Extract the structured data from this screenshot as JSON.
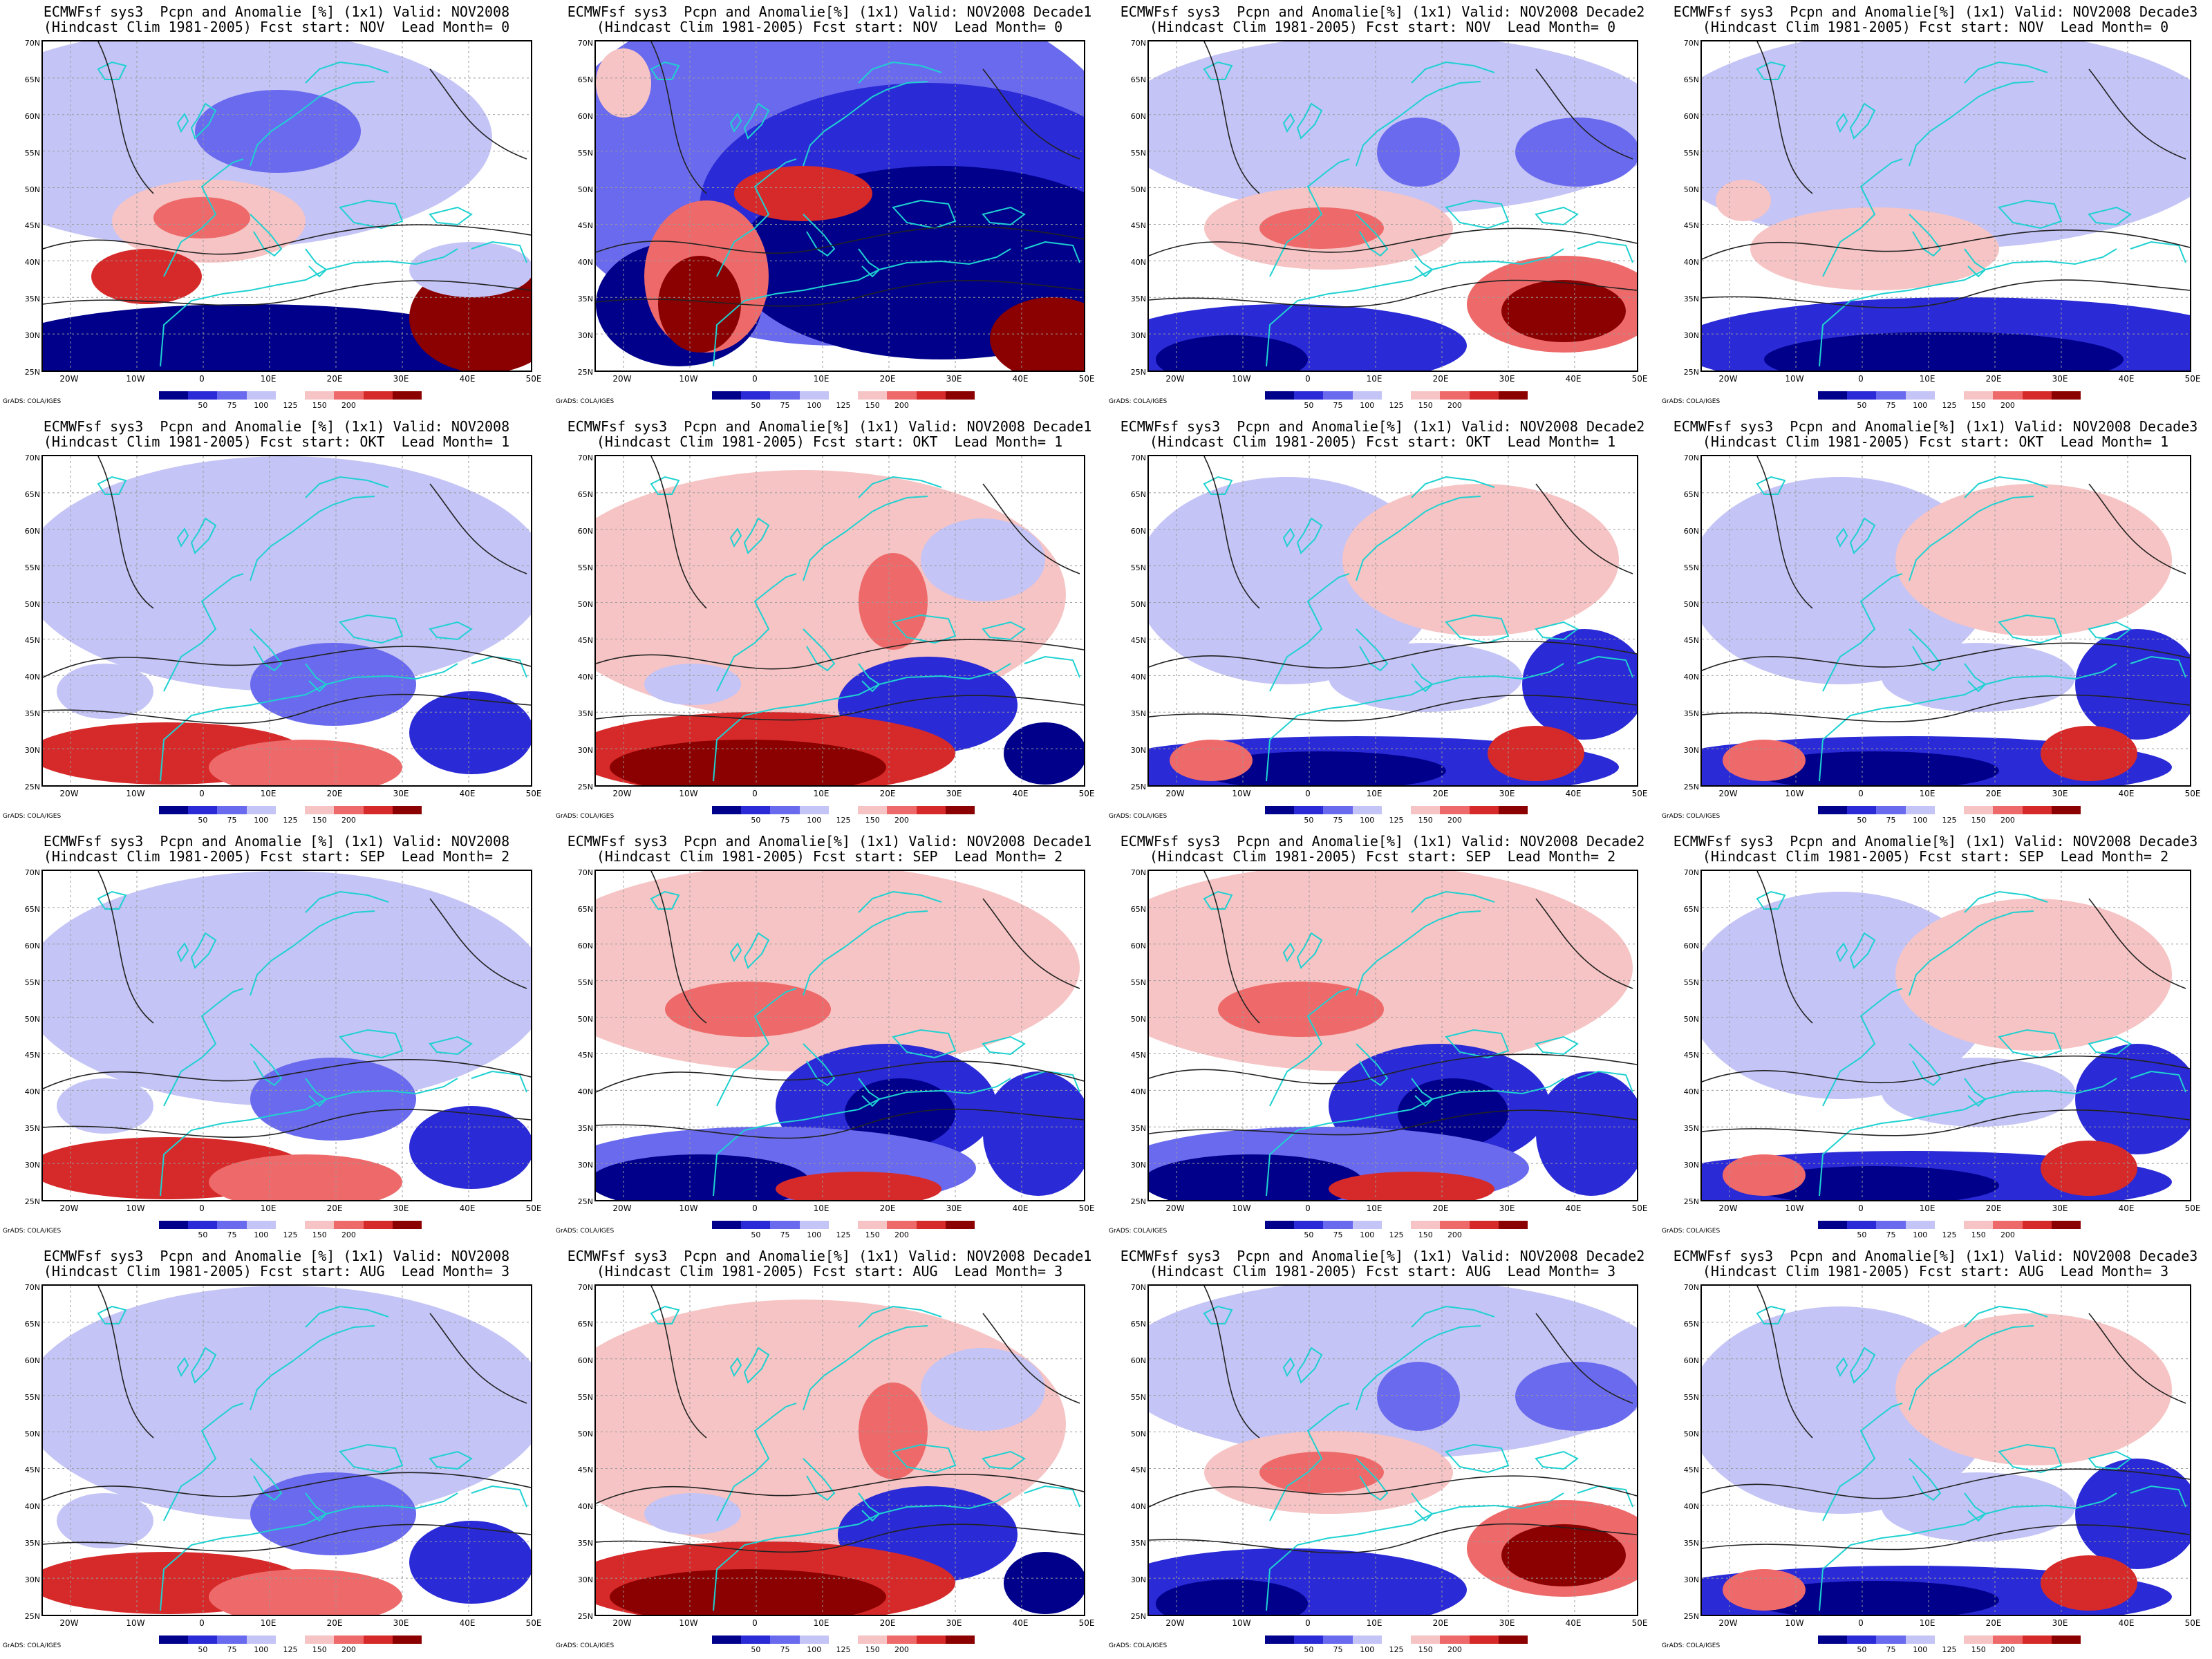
{
  "panels": [
    {
      "title1": "ECMWFsf sys3  Pcpn and Anomalie [%] (1x1) Valid: NOV2008",
      "title2": "(Hindcast Clim 1981-2005) Fcst start: NOV  Lead Month= 0",
      "pattern": "wet_south"
    },
    {
      "title1": "ECMWFsf sys3  Pcpn and Anomalie[%] (1x1) Valid: NOV2008 Decade1",
      "title2": "(Hindcast Clim 1981-2005) Fcst start: NOV  Lead Month= 0",
      "pattern": "very_dry"
    },
    {
      "title1": "ECMWFsf sys3  Pcpn and Anomalie[%] (1x1) Valid: NOV2008 Decade2",
      "title2": "(Hindcast Clim 1981-2005) Fcst start: NOV  Lead Month= 0",
      "pattern": "mixed_wet"
    },
    {
      "title1": "ECMWFsf sys3  Pcpn and Anomalie[%] (1x1) Valid: NOV2008 Decade3",
      "title2": "(Hindcast Clim 1981-2005) Fcst start: NOV  Lead Month= 0",
      "pattern": "dry_light"
    },
    {
      "title1": "ECMWFsf sys3  Pcpn and Anomalie [%] (1x1) Valid: NOV2008",
      "title2": "(Hindcast Clim 1981-2005) Fcst start: OKT  Lead Month= 1",
      "pattern": "light_wet_south"
    },
    {
      "title1": "ECMWFsf sys3  Pcpn and Anomalie[%] (1x1) Valid: NOV2008 Decade1",
      "title2": "(Hindcast Clim 1981-2005) Fcst start: OKT  Lead Month= 1",
      "pattern": "wet_south_strong"
    },
    {
      "title1": "ECMWFsf sys3  Pcpn and Anomalie[%] (1x1) Valid: NOV2008 Decade2",
      "title2": "(Hindcast Clim 1981-2005) Fcst start: OKT  Lead Month= 1",
      "pattern": "light_mixed"
    },
    {
      "title1": "ECMWFsf sys3  Pcpn and Anomalie[%] (1x1) Valid: NOV2008 Decade3",
      "title2": "(Hindcast Clim 1981-2005) Fcst start: OKT  Lead Month= 1",
      "pattern": "light_mixed"
    },
    {
      "title1": "ECMWFsf sys3  Pcpn and Anomalie [%] (1x1) Valid: NOV2008",
      "title2": "(Hindcast Clim 1981-2005) Fcst start: SEP  Lead Month= 2",
      "pattern": "light_wet_south"
    },
    {
      "title1": "ECMWFsf sys3  Pcpn and Anomalie[%] (1x1) Valid: NOV2008 Decade1",
      "title2": "(Hindcast Clim 1981-2005) Fcst start: SEP  Lead Month= 2",
      "pattern": "pink_north"
    },
    {
      "title1": "ECMWFsf sys3  Pcpn and Anomalie[%] (1x1) Valid: NOV2008 Decade2",
      "title2": "(Hindcast Clim 1981-2005) Fcst start: SEP  Lead Month= 2",
      "pattern": "pink_north"
    },
    {
      "title1": "ECMWFsf sys3  Pcpn and Anomalie[%] (1x1) Valid: NOV2008 Decade3",
      "title2": "(Hindcast Clim 1981-2005) Fcst start: SEP  Lead Month= 2",
      "pattern": "light_mixed"
    },
    {
      "title1": "ECMWFsf sys3  Pcpn and Anomalie [%] (1x1) Valid: NOV2008",
      "title2": "(Hindcast Clim 1981-2005) Fcst start: AUG  Lead Month= 3",
      "pattern": "light_wet_south"
    },
    {
      "title1": "ECMWFsf sys3  Pcpn and Anomalie[%] (1x1) Valid: NOV2008 Decade1",
      "title2": "(Hindcast Clim 1981-2005) Fcst start: AUG  Lead Month= 3",
      "pattern": "wet_south_strong"
    },
    {
      "title1": "ECMWFsf sys3  Pcpn and Anomalie[%] (1x1) Valid: NOV2008 Decade2",
      "title2": "(Hindcast Clim 1981-2005) Fcst start: AUG  Lead Month= 3",
      "pattern": "mixed_wet"
    },
    {
      "title1": "ECMWFsf sys3  Pcpn and Anomalie[%] (1x1) Valid: NOV2008 Decade3",
      "title2": "(Hindcast Clim 1981-2005) Fcst start: AUG  Lead Month= 3",
      "pattern": "light_mixed"
    }
  ],
  "axes": {
    "lat_labels": [
      "70N",
      "65N",
      "60N",
      "55N",
      "50N",
      "45N",
      "40N",
      "35N",
      "30N",
      "25N"
    ],
    "lon_labels": [
      "20W",
      "10W",
      "0",
      "10E",
      "20E",
      "30E",
      "40E",
      "50E"
    ]
  },
  "colorbar": {
    "ticks": [
      "50",
      "75",
      "100",
      "125",
      "150",
      "200"
    ],
    "colors": [
      "#00008b",
      "#2a2ad6",
      "#6a6aee",
      "#c4c4f6",
      "#ffffff",
      "#f6c4c4",
      "#ee6a6a",
      "#d62a2a",
      "#8b0000"
    ]
  },
  "credit": "GrADS: COLA/IGES",
  "colors": {
    "coast": "#1fd1d1",
    "contour": "#222222",
    "grid": "#9a9a9a"
  }
}
